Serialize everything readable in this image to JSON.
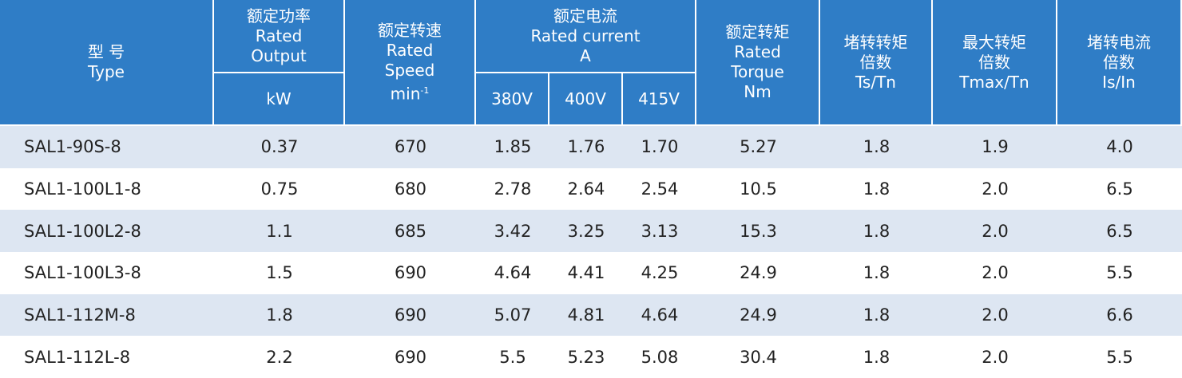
{
  "header": {
    "columns": [
      {
        "lines": [
          "型 号",
          "Type"
        ]
      },
      {
        "lines": [
          "额定功率",
          "Rated",
          "Output"
        ],
        "unit": "kW"
      },
      {
        "lines": [
          "额定转速",
          "Rated",
          "Speed"
        ],
        "unit": "min",
        "unit_sup": "-1"
      },
      {
        "lines": [
          "额定电流",
          "Rated current",
          "A"
        ],
        "sub": [
          "380V",
          "400V",
          "415V"
        ]
      },
      {
        "lines": [
          "额定转矩",
          "Rated",
          "Torque",
          "Nm"
        ]
      },
      {
        "lines": [
          "堵转转矩",
          "倍数",
          "Ts/Tn"
        ]
      },
      {
        "lines": [
          "最大转矩",
          "倍数",
          "Tmax/Tn"
        ]
      },
      {
        "lines": [
          "堵转电流",
          "倍数",
          "Is/In"
        ]
      }
    ]
  },
  "rows": [
    [
      "SAL1-90S-8",
      "0.37",
      "670",
      "1.85",
      "1.76",
      "1.70",
      "5.27",
      "1.8",
      "1.9",
      "4.0"
    ],
    [
      "SAL1-100L1-8",
      "0.75",
      "680",
      "2.78",
      "2.64",
      "2.54",
      "10.5",
      "1.8",
      "2.0",
      "6.5"
    ],
    [
      "SAL1-100L2-8",
      "1.1",
      "685",
      "3.42",
      "3.25",
      "3.13",
      "15.3",
      "1.8",
      "2.0",
      "6.5"
    ],
    [
      "SAL1-100L3-8",
      "1.5",
      "690",
      "4.64",
      "4.41",
      "4.25",
      "24.9",
      "1.8",
      "2.0",
      "5.5"
    ],
    [
      "SAL1-112M-8",
      "1.8",
      "690",
      "5.07",
      "4.81",
      "4.64",
      "24.9",
      "1.8",
      "2.0",
      "6.6"
    ],
    [
      "SAL1-112L-8",
      "2.2",
      "690",
      "5.5",
      "5.23",
      "5.08",
      "30.4",
      "1.8",
      "2.0",
      "5.5"
    ]
  ]
}
